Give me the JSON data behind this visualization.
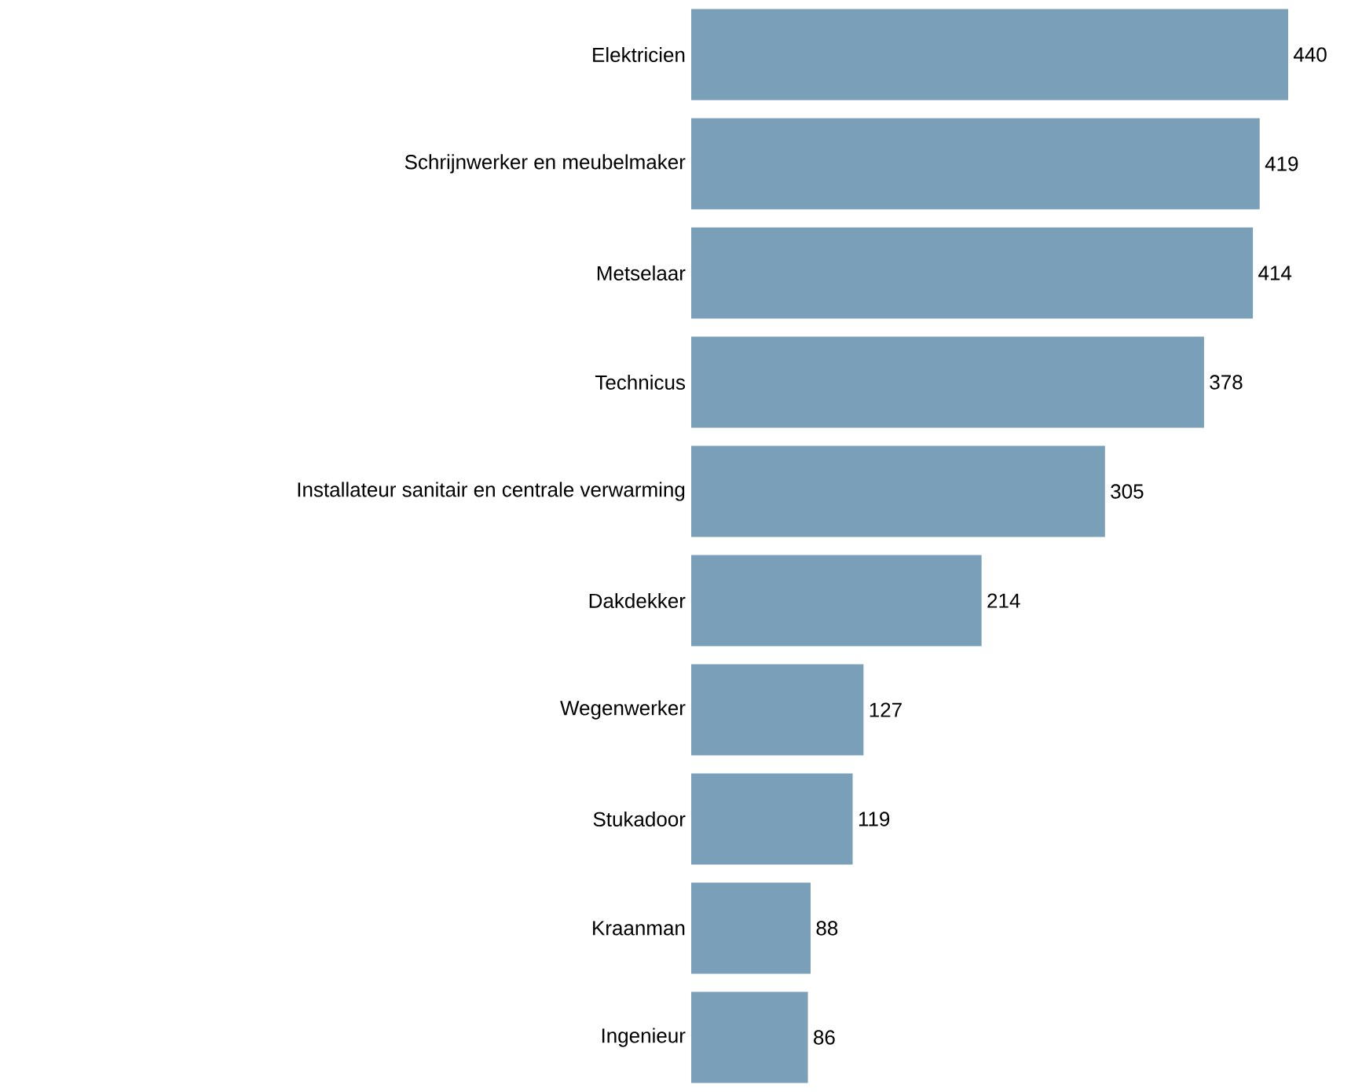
{
  "chart_data": {
    "type": "bar",
    "orientation": "horizontal",
    "categories": [
      "Elektricien",
      "Schrijnwerker en meubelmaker",
      "Metselaar",
      "Technicus",
      "Installateur sanitair en centrale verwarming",
      "Dakdekker",
      "Wegenwerker",
      "Stukadoor",
      "Kraanman",
      "Ingenieur"
    ],
    "values": [
      440,
      419,
      414,
      378,
      305,
      214,
      127,
      119,
      88,
      86
    ],
    "color": "#7a9fb8",
    "data_labels": true
  }
}
